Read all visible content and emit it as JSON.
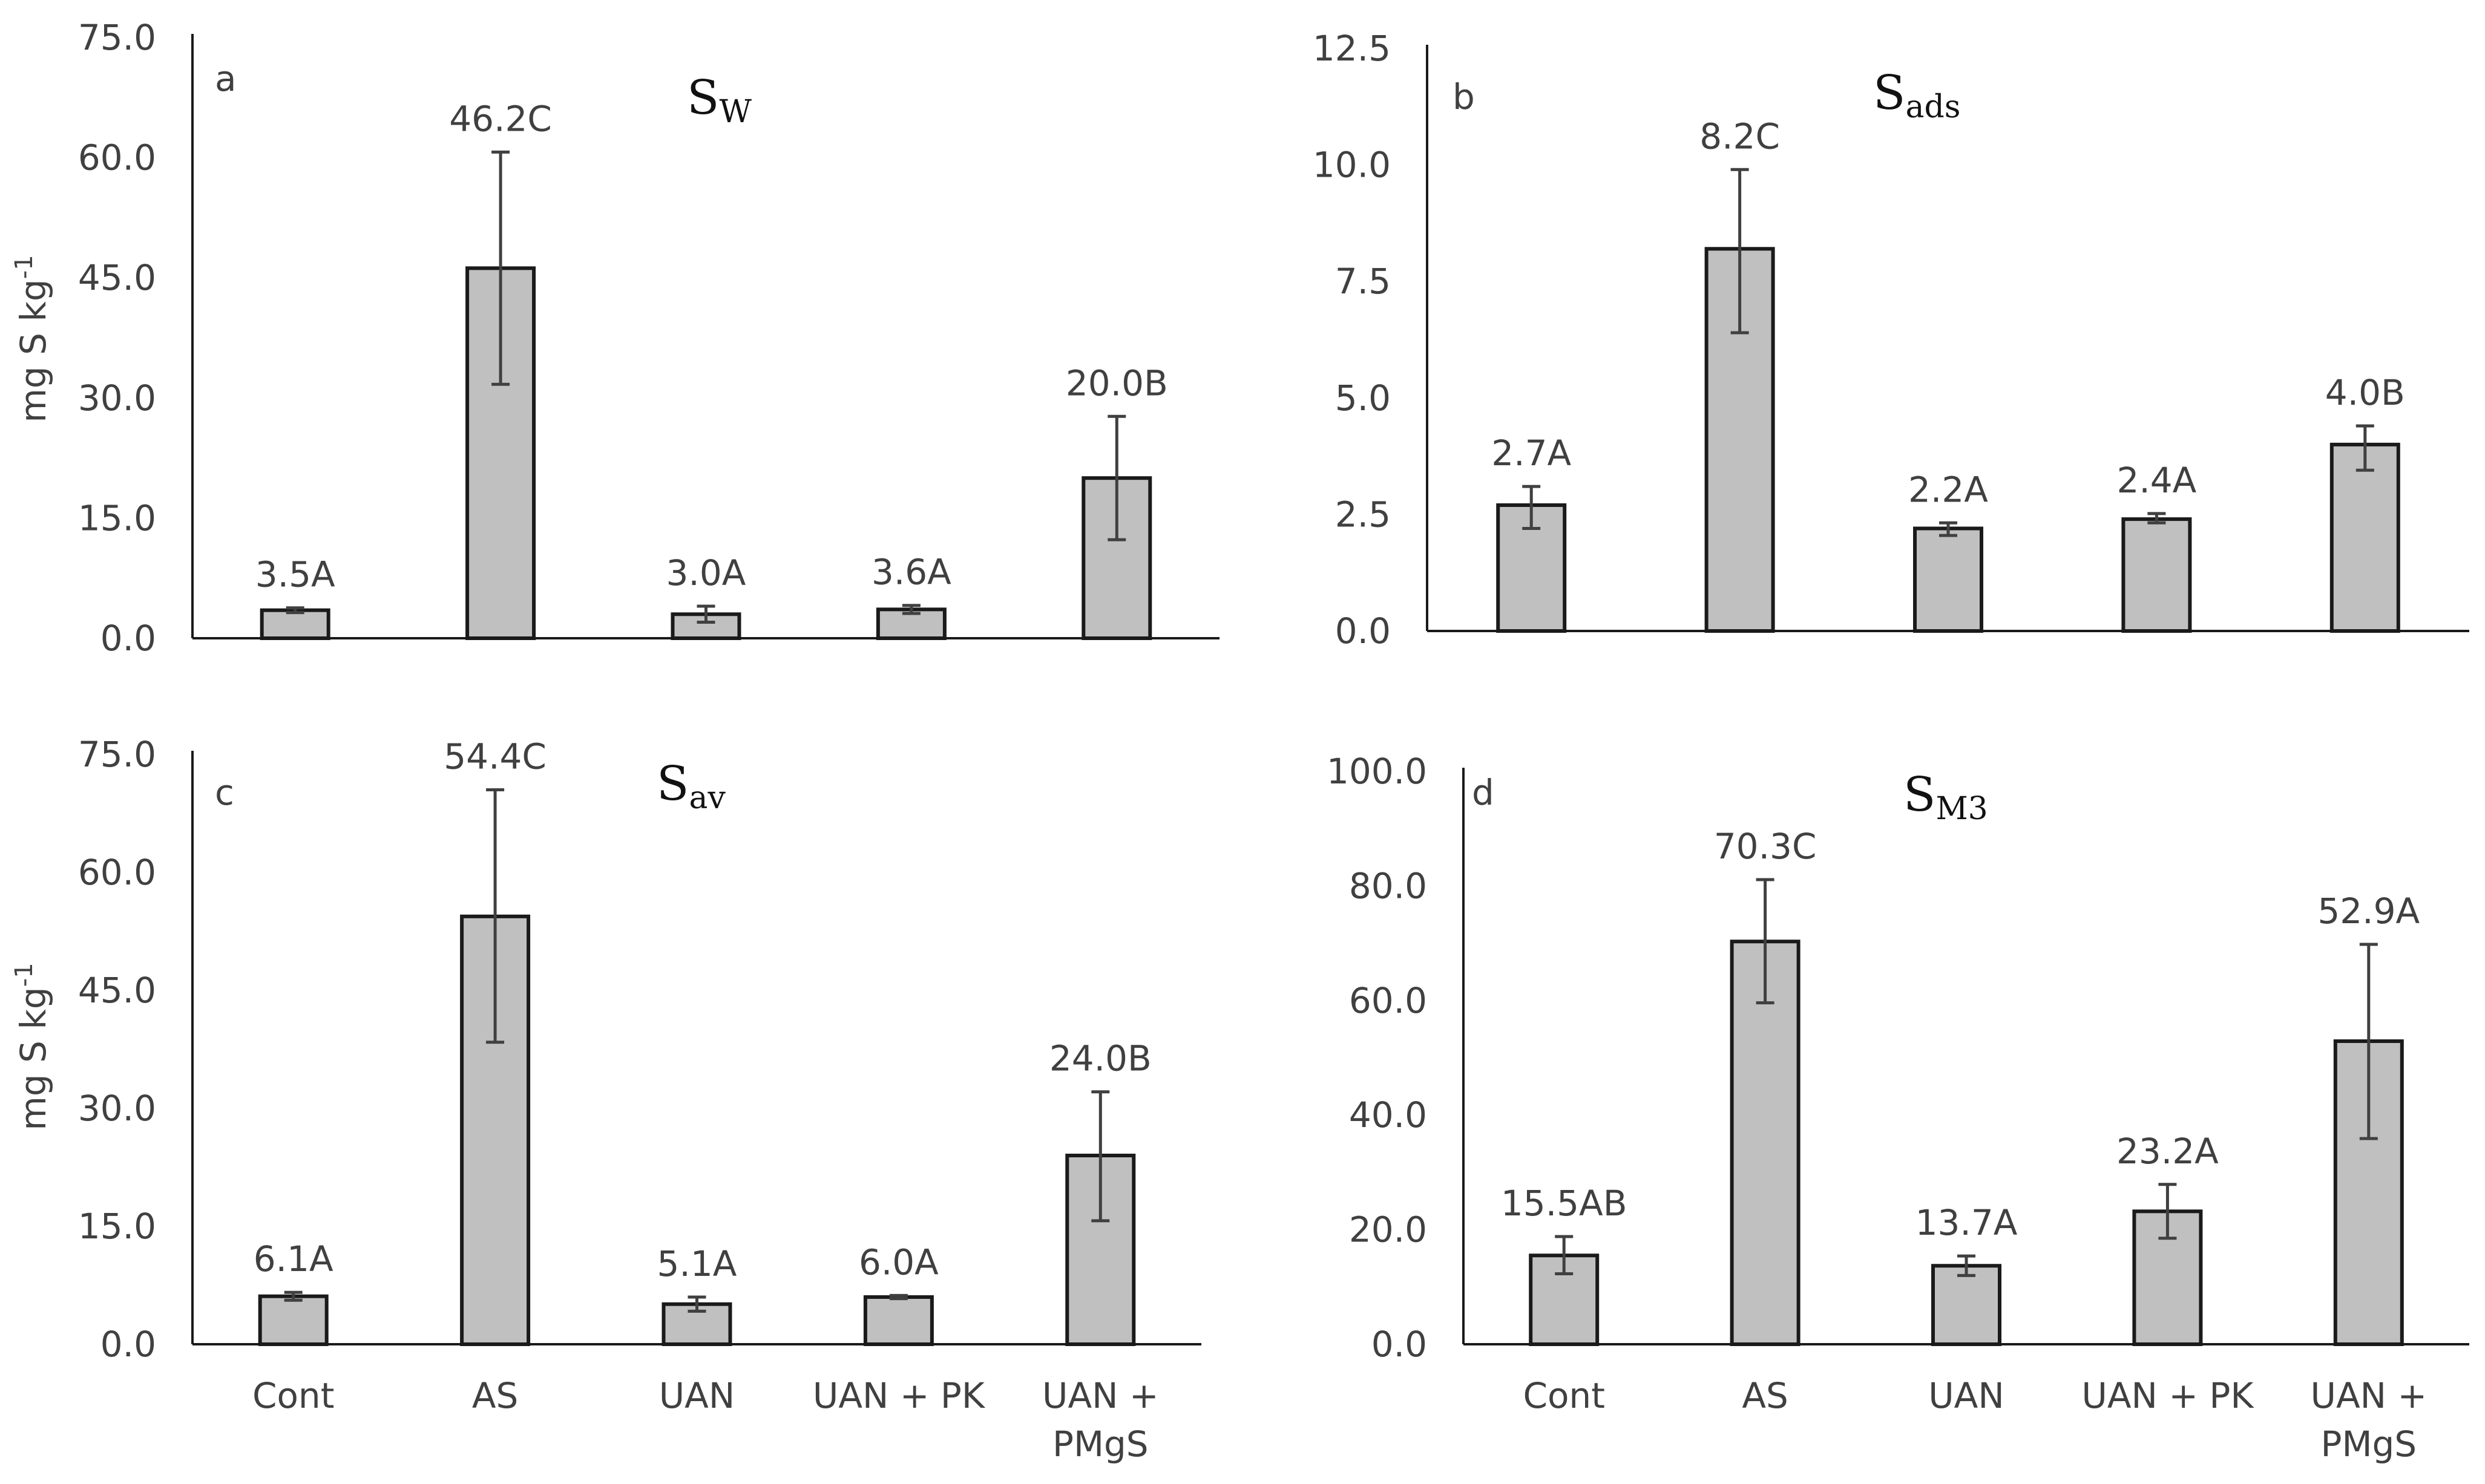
{
  "colors": {
    "bar_fill": "#c0c0c0",
    "bar_stroke": "#1a1a1a",
    "axis": "#1a1a1a",
    "text": "#404040",
    "errorbar": "#404040"
  },
  "chart_data": [
    {
      "id": "a",
      "type": "bar",
      "panel_letter": "a",
      "title_main": "S",
      "title_sub": "W",
      "ylabel": "mg S kg",
      "ylabel_sup": "-1",
      "ylim": [
        0,
        75
      ],
      "yticks": [
        "0.0",
        "15.0",
        "30.0",
        "45.0",
        "60.0",
        "75.0"
      ],
      "ytick_values": [
        0,
        15,
        30,
        45,
        60,
        75
      ],
      "categories": [
        "Cont",
        "AS",
        "UAN",
        "UAN + PK",
        "UAN + PMgS"
      ],
      "values": [
        3.5,
        46.2,
        3.0,
        3.6,
        20.0
      ],
      "error_low": [
        3.2,
        31.7,
        2.0,
        3.1,
        12.3
      ],
      "error_high": [
        3.8,
        60.7,
        4.0,
        4.1,
        27.7
      ],
      "labels": [
        "3.5A",
        "46.2C",
        "3.0A",
        "3.6A",
        "20.0B"
      ],
      "show_xticklabels": false
    },
    {
      "id": "b",
      "type": "bar",
      "panel_letter": "b",
      "title_main": "S",
      "title_sub": "ads",
      "ylabel": "",
      "ylabel_sup": "",
      "ylim": [
        0,
        12.5
      ],
      "yticks": [
        "0.0",
        "2.5",
        "5.0",
        "7.5",
        "10.0",
        "12.5"
      ],
      "ytick_values": [
        0,
        2.5,
        5,
        7.5,
        10,
        12.5
      ],
      "categories": [
        "Cont",
        "AS",
        "UAN",
        "UAN + PK",
        "UAN + PMgS"
      ],
      "values": [
        2.7,
        8.2,
        2.2,
        2.4,
        4.0
      ],
      "error_low": [
        2.2,
        6.4,
        2.05,
        2.32,
        3.45
      ],
      "error_high": [
        3.1,
        9.9,
        2.32,
        2.52,
        4.4
      ],
      "labels": [
        "2.7A",
        "8.2C",
        "2.2A",
        "2.4A",
        "4.0B"
      ],
      "show_xticklabels": false
    },
    {
      "id": "c",
      "type": "bar",
      "panel_letter": "c",
      "title_main": "S",
      "title_sub": "av",
      "ylabel": "mg S kg",
      "ylabel_sup": "-1",
      "ylim": [
        0,
        75
      ],
      "yticks": [
        "0.0",
        "15.0",
        "30.0",
        "45.0",
        "60.0",
        "75.0"
      ],
      "ytick_values": [
        0,
        15,
        30,
        45,
        60,
        75
      ],
      "categories": [
        "Cont",
        "AS",
        "UAN",
        "UAN + PK",
        "UAN + PMgS"
      ],
      "category_lines": [
        [
          "Cont"
        ],
        [
          "AS"
        ],
        [
          "UAN"
        ],
        [
          "UAN + PK"
        ],
        [
          "UAN +",
          "PMgS"
        ]
      ],
      "values": [
        6.1,
        54.4,
        5.1,
        6.0,
        24.0
      ],
      "error_low": [
        5.6,
        38.4,
        4.2,
        5.8,
        15.7
      ],
      "error_high": [
        6.6,
        70.5,
        6.0,
        6.2,
        32.1
      ],
      "labels": [
        "6.1A",
        "54.4C",
        "5.1A",
        "6.0A",
        "24.0B"
      ],
      "show_xticklabels": true
    },
    {
      "id": "d",
      "type": "bar",
      "panel_letter": "d",
      "title_main": "S",
      "title_sub": "M3",
      "ylabel": "",
      "ylabel_sup": "",
      "ylim": [
        0,
        100
      ],
      "yticks": [
        "0.0",
        "20.0",
        "40.0",
        "60.0",
        "80.0",
        "100.0"
      ],
      "ytick_values": [
        0,
        20,
        40,
        60,
        80,
        100
      ],
      "categories": [
        "Cont",
        "AS",
        "UAN",
        "UAN + PK",
        "UAN + PMgS"
      ],
      "category_lines": [
        [
          "Cont"
        ],
        [
          "AS"
        ],
        [
          "UAN"
        ],
        [
          "UAN + PK"
        ],
        [
          "UAN +",
          "PMgS"
        ]
      ],
      "values": [
        15.5,
        70.3,
        13.7,
        23.2,
        52.9
      ],
      "error_low": [
        12.3,
        59.6,
        12.0,
        18.5,
        35.9
      ],
      "error_high": [
        18.8,
        81.1,
        15.4,
        27.9,
        69.8
      ],
      "labels": [
        "15.5AB",
        "70.3C",
        "13.7A",
        "23.2A",
        "52.9A"
      ],
      "show_xticklabels": true
    }
  ]
}
